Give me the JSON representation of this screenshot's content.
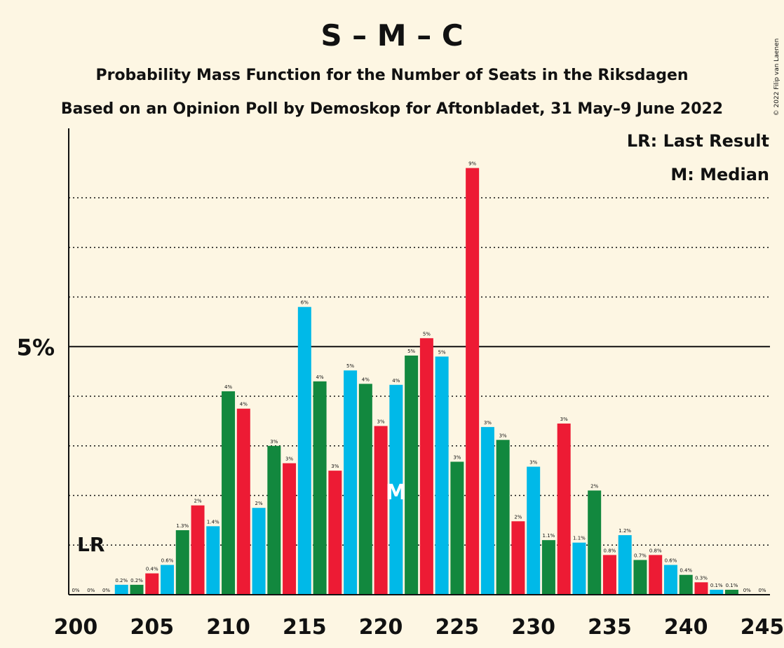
{
  "chart_data": {
    "type": "bar",
    "title": "S – M – C",
    "subtitle": "Probability Mass Function for the Number of Seats in the Riksdagen",
    "subtitle2": "Based on an Opinion Poll by Demoskop for Aftonbladet, 31 May–9 June 2022",
    "copyright": "© 2022 Filip van Laenen",
    "legend": {
      "lr": "LR: Last Result",
      "median": "M: Median"
    },
    "y_tick_label": "5%",
    "y_tick_value": 5,
    "ylim": [
      0,
      9.4
    ],
    "gridlines": [
      1,
      2,
      3,
      4,
      6,
      7,
      8
    ],
    "x_tick_labels": [
      "200",
      "205",
      "210",
      "215",
      "220",
      "225",
      "230",
      "235",
      "240",
      "245"
    ],
    "x_ticks": [
      200,
      205,
      210,
      215,
      220,
      225,
      230,
      235,
      240,
      245
    ],
    "xlim": [
      200,
      245
    ],
    "last_result_seat": 201,
    "last_result_label": "LR",
    "median_seat": 221,
    "median_label": "M",
    "colors": [
      "#00b9e8",
      "#12883e",
      "#ed1b34"
    ],
    "bars": [
      {
        "seat": 200,
        "value": 0,
        "label": "0%"
      },
      {
        "seat": 201,
        "value": 0,
        "label": "0%"
      },
      {
        "seat": 202,
        "value": 0,
        "label": "0%"
      },
      {
        "seat": 203,
        "value": 0.2,
        "label": "0.2%"
      },
      {
        "seat": 204,
        "value": 0.2,
        "label": "0.2%"
      },
      {
        "seat": 205,
        "value": 0.43,
        "label": "0.4%"
      },
      {
        "seat": 206,
        "value": 0.6,
        "label": "0.6%"
      },
      {
        "seat": 207,
        "value": 1.3,
        "label": "1.3%"
      },
      {
        "seat": 208,
        "value": 1.8,
        "label": "2%"
      },
      {
        "seat": 209,
        "value": 1.38,
        "label": "1.4%"
      },
      {
        "seat": 210,
        "value": 4.1,
        "label": "4%"
      },
      {
        "seat": 211,
        "value": 3.75,
        "label": "4%"
      },
      {
        "seat": 212,
        "value": 1.75,
        "label": "2%"
      },
      {
        "seat": 213,
        "value": 3.0,
        "label": "3%"
      },
      {
        "seat": 214,
        "value": 2.65,
        "label": "3%"
      },
      {
        "seat": 215,
        "value": 5.8,
        "label": "6%"
      },
      {
        "seat": 216,
        "value": 4.3,
        "label": "4%"
      },
      {
        "seat": 217,
        "value": 2.5,
        "label": "3%"
      },
      {
        "seat": 218,
        "value": 4.52,
        "label": "5%"
      },
      {
        "seat": 219,
        "value": 4.25,
        "label": "4%"
      },
      {
        "seat": 220,
        "value": 3.4,
        "label": "3%"
      },
      {
        "seat": 221,
        "value": 4.23,
        "label": "4%"
      },
      {
        "seat": 222,
        "value": 4.82,
        "label": "5%"
      },
      {
        "seat": 223,
        "value": 5.17,
        "label": "5%"
      },
      {
        "seat": 224,
        "value": 4.8,
        "label": "5%"
      },
      {
        "seat": 225,
        "value": 2.68,
        "label": "3%"
      },
      {
        "seat": 226,
        "value": 8.6,
        "label": "9%"
      },
      {
        "seat": 227,
        "value": 3.38,
        "label": "3%"
      },
      {
        "seat": 228,
        "value": 3.12,
        "label": "3%"
      },
      {
        "seat": 229,
        "value": 1.48,
        "label": "2%"
      },
      {
        "seat": 230,
        "value": 2.58,
        "label": "3%"
      },
      {
        "seat": 231,
        "value": 1.1,
        "label": "1.1%"
      },
      {
        "seat": 232,
        "value": 3.45,
        "label": "3%"
      },
      {
        "seat": 233,
        "value": 1.05,
        "label": "1.1%"
      },
      {
        "seat": 234,
        "value": 2.1,
        "label": "2%"
      },
      {
        "seat": 235,
        "value": 0.8,
        "label": "0.8%"
      },
      {
        "seat": 236,
        "value": 1.2,
        "label": "1.2%"
      },
      {
        "seat": 237,
        "value": 0.7,
        "label": "0.7%"
      },
      {
        "seat": 238,
        "value": 0.8,
        "label": "0.8%"
      },
      {
        "seat": 239,
        "value": 0.6,
        "label": "0.6%"
      },
      {
        "seat": 240,
        "value": 0.4,
        "label": "0.4%"
      },
      {
        "seat": 241,
        "value": 0.25,
        "label": "0.3%"
      },
      {
        "seat": 242,
        "value": 0.1,
        "label": "0.1%"
      },
      {
        "seat": 243,
        "value": 0.1,
        "label": "0.1%"
      },
      {
        "seat": 244,
        "value": 0,
        "label": "0%"
      },
      {
        "seat": 245,
        "value": 0,
        "label": "0%"
      }
    ]
  }
}
